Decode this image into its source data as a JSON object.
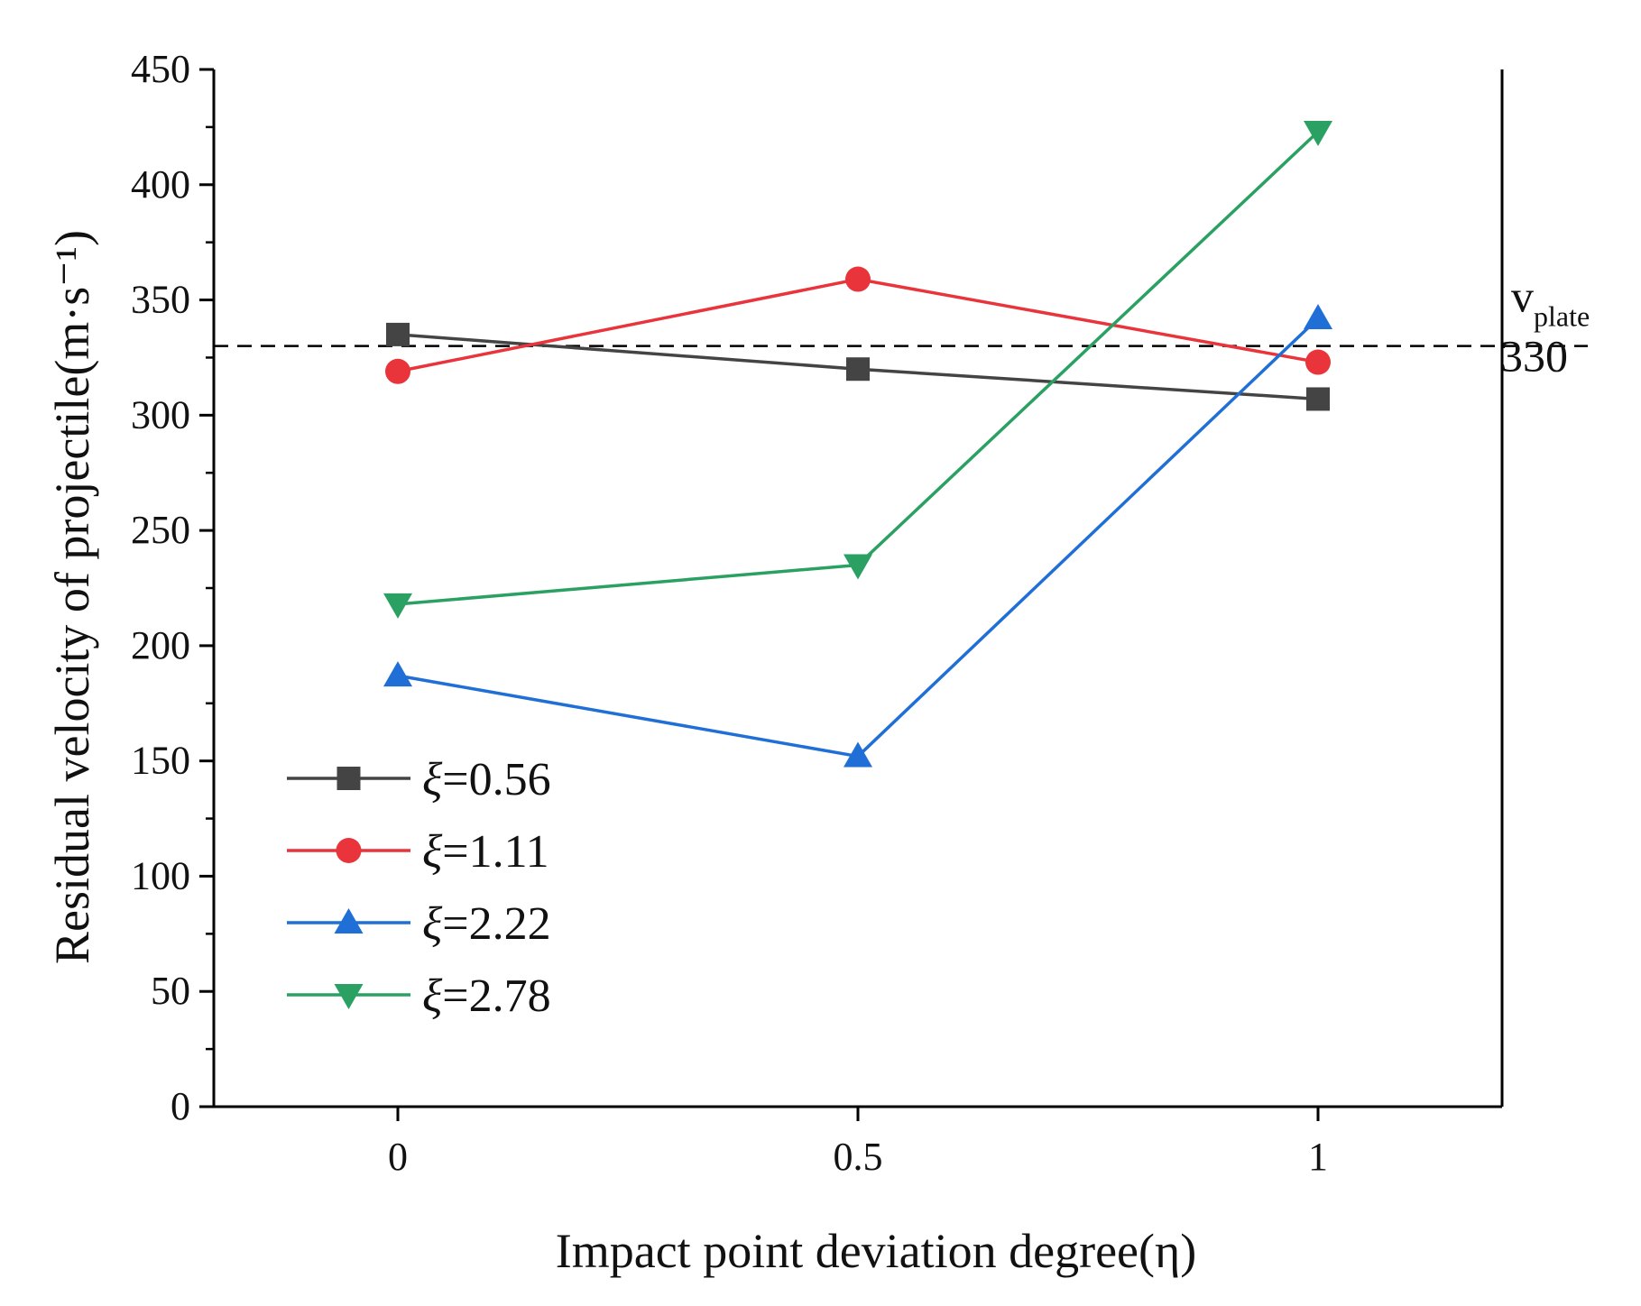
{
  "chart_data": {
    "type": "line",
    "title": "",
    "xlabel": "Impact point deviation degree(η)",
    "ylabel": "Residual velocity of projectile(m·s⁻¹)",
    "x": [
      0,
      0.5,
      1
    ],
    "x_tick_labels": [
      "0",
      "0.5",
      "1"
    ],
    "xlim": [
      -0.2,
      1.2
    ],
    "ylim": [
      0,
      450
    ],
    "y_ticks": [
      0,
      50,
      100,
      150,
      200,
      250,
      300,
      350,
      400,
      450
    ],
    "y_tick_labels": [
      "0",
      "50",
      "100",
      "150",
      "200",
      "250",
      "300",
      "350",
      "400",
      "450"
    ],
    "grid": false,
    "legend_position": "bottom-left",
    "series": [
      {
        "name": "ξ=0.56",
        "symbol": "ξ",
        "value_label": "=0.56",
        "marker": "square",
        "color": "#444444",
        "values": [
          335,
          320,
          307
        ]
      },
      {
        "name": "ξ=1.11",
        "symbol": "ξ",
        "value_label": "=1.11",
        "marker": "circle",
        "color": "#e8343a",
        "values": [
          319,
          359,
          323
        ]
      },
      {
        "name": "ξ=2.22",
        "symbol": "ξ",
        "value_label": "=2.22",
        "marker": "triangle-up",
        "color": "#1f6fd6",
        "values": [
          187,
          152,
          342
        ]
      },
      {
        "name": "ξ=2.78",
        "symbol": "ξ",
        "value_label": "=2.78",
        "marker": "triangle-down",
        "color": "#2aa162",
        "values": [
          218,
          235,
          423
        ]
      }
    ],
    "reference_line": {
      "value": 330,
      "style": "dashed",
      "color": "#000000",
      "label_main": "v",
      "label_sub": "plate",
      "label_value": "330"
    }
  }
}
